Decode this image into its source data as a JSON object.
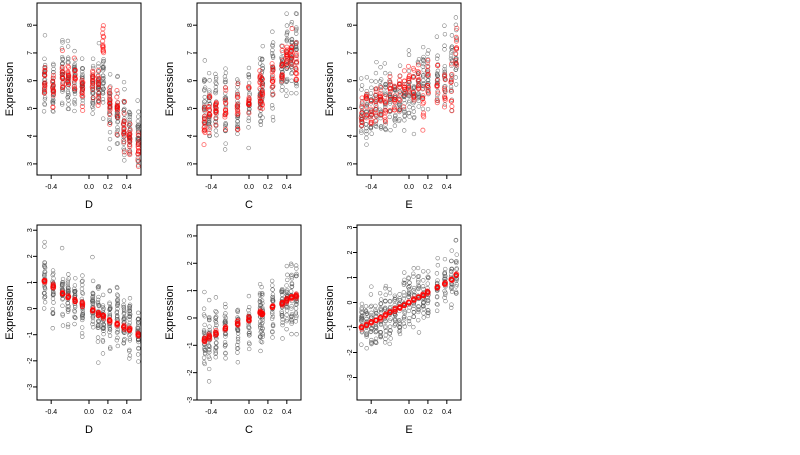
{
  "colors": {
    "observed": "#555555",
    "fitted": "#ff0000",
    "axis": "#000000"
  },
  "chart_data": [
    {
      "type": "scatter",
      "panel": "top-left",
      "xlabel": "D",
      "ylabel": "Expression",
      "xlim": [
        -0.55,
        0.55
      ],
      "ylim": [
        2.6,
        8.8
      ],
      "xticks": [
        -0.4,
        0.0,
        0.2,
        0.4
      ],
      "xtick_labels": [
        "-0.4",
        "0.0",
        "0.2",
        "0.4"
      ],
      "yticks": [
        3,
        4,
        5,
        6,
        7,
        8
      ],
      "ytick_labels": [
        "3",
        "4",
        "5",
        "6",
        "7",
        "8"
      ],
      "groups_x": [
        -0.47,
        -0.38,
        -0.28,
        -0.22,
        -0.15,
        -0.07,
        0.04,
        0.1,
        0.15,
        0.22,
        0.3,
        0.37,
        0.43,
        0.52
      ],
      "series": [
        {
          "role": "observed",
          "trend": [
            6.0,
            5.8,
            6.1,
            6.0,
            5.9,
            5.8,
            5.8,
            5.9,
            6.0,
            5.0,
            4.8,
            4.4,
            4.0,
            3.8
          ],
          "spread": 1.1,
          "n_per_group": 28
        },
        {
          "role": "fitted",
          "trend": [
            6.0,
            5.7,
            6.0,
            6.2,
            6.0,
            5.7,
            6.0,
            5.9,
            7.2,
            5.2,
            4.9,
            4.3,
            3.9,
            3.6
          ],
          "spread": 0.65,
          "n_per_group": 14
        }
      ]
    },
    {
      "type": "scatter",
      "panel": "top-middle",
      "xlabel": "C",
      "ylabel": "Expression",
      "xlim": [
        -0.55,
        0.55
      ],
      "ylim": [
        2.6,
        8.8
      ],
      "xticks": [
        -0.4,
        0.0,
        0.2,
        0.4
      ],
      "xtick_labels": [
        "-0.4",
        "0.0",
        "0.2",
        "0.4"
      ],
      "yticks": [
        3,
        4,
        5,
        6,
        7,
        8
      ],
      "ytick_labels": [
        "3",
        "4",
        "5",
        "6",
        "7",
        "8"
      ],
      "groups_x": [
        -0.47,
        -0.42,
        -0.35,
        -0.25,
        -0.12,
        0.0,
        0.12,
        0.14,
        0.25,
        0.35,
        0.4,
        0.45,
        0.5
      ],
      "series": [
        {
          "role": "observed",
          "trend": [
            4.8,
            4.8,
            5.0,
            5.0,
            5.2,
            5.3,
            5.6,
            5.8,
            6.0,
            6.3,
            6.6,
            6.9,
            7.1
          ],
          "spread": 1.3,
          "n_per_group": 26
        },
        {
          "role": "fitted",
          "trend": [
            4.6,
            4.8,
            4.9,
            5.0,
            5.1,
            5.3,
            5.7,
            5.5,
            6.1,
            6.4,
            6.8,
            7.0,
            6.6
          ],
          "spread": 0.7,
          "n_per_group": 14
        }
      ]
    },
    {
      "type": "scatter",
      "panel": "top-right",
      "xlabel": "E",
      "ylabel": "Expression",
      "xlim": [
        -0.55,
        0.55
      ],
      "ylim": [
        2.6,
        8.8
      ],
      "xticks": [
        -0.4,
        0.0,
        0.2,
        0.4
      ],
      "xtick_labels": [
        "-0.4",
        "0.0",
        "0.2",
        "0.4"
      ],
      "yticks": [
        3,
        4,
        5,
        6,
        7,
        8
      ],
      "ytick_labels": [
        "3",
        "4",
        "5",
        "6",
        "7",
        "8"
      ],
      "groups_x": [
        -0.5,
        -0.45,
        -0.4,
        -0.35,
        -0.3,
        -0.25,
        -0.2,
        -0.15,
        -0.1,
        -0.05,
        0.0,
        0.05,
        0.1,
        0.15,
        0.2,
        0.3,
        0.38,
        0.45,
        0.5
      ],
      "series": [
        {
          "role": "observed",
          "trend": [
            5.0,
            5.1,
            5.0,
            5.1,
            5.2,
            5.2,
            5.3,
            5.3,
            5.5,
            5.5,
            5.6,
            5.7,
            5.9,
            5.9,
            6.0,
            6.1,
            6.2,
            6.6,
            6.9
          ],
          "spread": 1.2,
          "n_per_group": 20
        },
        {
          "role": "fitted",
          "trend": [
            4.8,
            5.0,
            4.9,
            5.2,
            5.3,
            5.1,
            5.5,
            5.2,
            5.6,
            5.7,
            5.8,
            5.8,
            6.0,
            5.0,
            6.0,
            5.9,
            5.6,
            5.8,
            7.2
          ],
          "spread": 0.7,
          "n_per_group": 10
        }
      ]
    },
    {
      "type": "scatter",
      "panel": "bottom-left",
      "xlabel": "D",
      "ylabel": "Expression",
      "xlim": [
        -0.55,
        0.55
      ],
      "ylim": [
        -3.5,
        3.2
      ],
      "xticks": [
        -0.4,
        0.0,
        0.2,
        0.4
      ],
      "xtick_labels": [
        "-0.4",
        "0.0",
        "0.2",
        "0.4"
      ],
      "yticks": [
        -3,
        -2,
        -1,
        0,
        1,
        2,
        3
      ],
      "ytick_labels": [
        "-3",
        "-2",
        "-1",
        "0",
        "1",
        "2",
        "3"
      ],
      "groups_x": [
        -0.47,
        -0.38,
        -0.28,
        -0.22,
        -0.15,
        -0.07,
        0.04,
        0.1,
        0.15,
        0.22,
        0.3,
        0.37,
        0.43,
        0.52
      ],
      "series": [
        {
          "role": "observed",
          "trend": [
            1.0,
            0.8,
            0.5,
            0.4,
            0.3,
            0.1,
            0.0,
            -0.2,
            -0.3,
            -0.4,
            -0.5,
            -0.6,
            -0.7,
            -0.9
          ],
          "spread": 1.1,
          "n_per_group": 28
        },
        {
          "role": "fitted",
          "trend": [
            1.05,
            0.85,
            0.6,
            0.45,
            0.3,
            0.15,
            -0.05,
            -0.2,
            -0.3,
            -0.45,
            -0.6,
            -0.7,
            -0.8,
            -1.0
          ],
          "spread": 0.08,
          "n_per_group": 10
        }
      ]
    },
    {
      "type": "scatter",
      "panel": "bottom-middle",
      "xlabel": "C",
      "ylabel": "Expression",
      "xlim": [
        -0.55,
        0.55
      ],
      "ylim": [
        -3.0,
        3.4
      ],
      "xticks": [
        -0.4,
        0.0,
        0.2,
        0.4
      ],
      "xtick_labels": [
        "-0.4",
        "0.0",
        "0.2",
        "0.4"
      ],
      "yticks": [
        -3,
        -2,
        -1,
        0,
        1,
        2,
        3
      ],
      "ytick_labels": [
        "-3",
        "-2",
        "-1",
        "0",
        "1",
        "2",
        "3"
      ],
      "groups_x": [
        -0.47,
        -0.42,
        -0.35,
        -0.25,
        -0.12,
        0.0,
        0.12,
        0.14,
        0.25,
        0.35,
        0.4,
        0.45,
        0.5
      ],
      "series": [
        {
          "role": "observed",
          "trend": [
            -0.8,
            -0.7,
            -0.6,
            -0.4,
            -0.3,
            -0.1,
            0.1,
            0.2,
            0.3,
            0.5,
            0.6,
            0.7,
            0.9
          ],
          "spread": 1.1,
          "n_per_group": 26
        },
        {
          "role": "fitted",
          "trend": [
            -0.8,
            -0.7,
            -0.55,
            -0.4,
            -0.2,
            -0.05,
            0.2,
            0.15,
            0.4,
            0.55,
            0.65,
            0.75,
            0.8
          ],
          "spread": 0.08,
          "n_per_group": 10
        }
      ]
    },
    {
      "type": "scatter",
      "panel": "bottom-right",
      "xlabel": "E",
      "ylabel": "Expression",
      "xlim": [
        -0.55,
        0.55
      ],
      "ylim": [
        -3.9,
        3.1
      ],
      "xticks": [
        -0.4,
        0.0,
        0.2,
        0.4
      ],
      "xtick_labels": [
        "-0.4",
        "0.0",
        "0.2",
        "0.4"
      ],
      "yticks": [
        -3,
        -2,
        -1,
        0,
        1,
        2,
        3
      ],
      "ytick_labels": [
        "-3",
        "-2",
        "-1",
        "0",
        "1",
        "2",
        "3"
      ],
      "groups_x": [
        -0.5,
        -0.45,
        -0.4,
        -0.35,
        -0.3,
        -0.25,
        -0.2,
        -0.15,
        -0.1,
        -0.05,
        0.0,
        0.05,
        0.1,
        0.15,
        0.2,
        0.3,
        0.38,
        0.45,
        0.5
      ],
      "series": [
        {
          "role": "observed",
          "trend": [
            -1.0,
            -0.9,
            -0.8,
            -0.7,
            -0.6,
            -0.5,
            -0.4,
            -0.3,
            -0.2,
            -0.1,
            0.0,
            0.1,
            0.2,
            0.3,
            0.4,
            0.6,
            0.7,
            0.9,
            1.1
          ],
          "spread": 1.0,
          "n_per_group": 20
        },
        {
          "role": "fitted",
          "trend": [
            -1.0,
            -0.9,
            -0.8,
            -0.7,
            -0.6,
            -0.5,
            -0.4,
            -0.3,
            -0.2,
            -0.1,
            0.0,
            0.1,
            0.2,
            0.3,
            0.4,
            0.6,
            0.75,
            0.9,
            1.1
          ],
          "spread": 0.06,
          "n_per_group": 8
        }
      ]
    }
  ]
}
